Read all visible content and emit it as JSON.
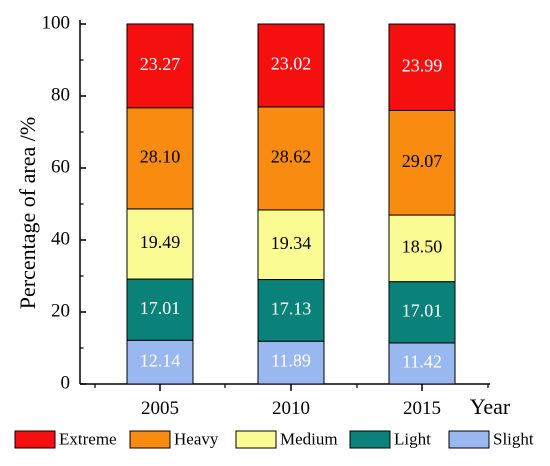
{
  "chart_data": {
    "type": "bar",
    "stacked": true,
    "title": "",
    "xlabel": "Year",
    "ylabel": "Percentage of area /%",
    "ylim": [
      0,
      100
    ],
    "yticks": [
      0,
      20,
      40,
      60,
      80,
      100
    ],
    "categories": [
      "2005",
      "2010",
      "2015"
    ],
    "series": [
      {
        "name": "Slight",
        "color": "#99b8f0",
        "label_color": "#ffffff",
        "values": [
          12.14,
          11.89,
          11.42
        ],
        "labels": [
          "12.14",
          "11.89",
          "11.42"
        ]
      },
      {
        "name": "Light",
        "color": "#0b8279",
        "label_color": "#ffffff",
        "values": [
          17.01,
          17.13,
          17.01
        ],
        "labels": [
          "17.01",
          "17.13",
          "17.01"
        ]
      },
      {
        "name": "Medium",
        "color": "#fbfb94",
        "label_color": "#000000",
        "values": [
          19.49,
          19.34,
          18.5
        ],
        "labels": [
          "19.49",
          "19.34",
          "18.50"
        ]
      },
      {
        "name": "Heavy",
        "color": "#f98b10",
        "label_color": "#000000",
        "values": [
          28.1,
          28.62,
          29.07
        ],
        "labels": [
          "28.10",
          "28.62",
          "29.07"
        ]
      },
      {
        "name": "Extreme",
        "color": "#f50f0f",
        "label_color": "#ffffff",
        "values": [
          23.27,
          23.02,
          23.99
        ],
        "labels": [
          "23.27",
          "23.02",
          "23.99"
        ]
      }
    ],
    "legend": {
      "placement": "bottom",
      "order": [
        "Extreme",
        "Heavy",
        "Medium",
        "Light",
        "Slight"
      ]
    },
    "grid": false
  }
}
